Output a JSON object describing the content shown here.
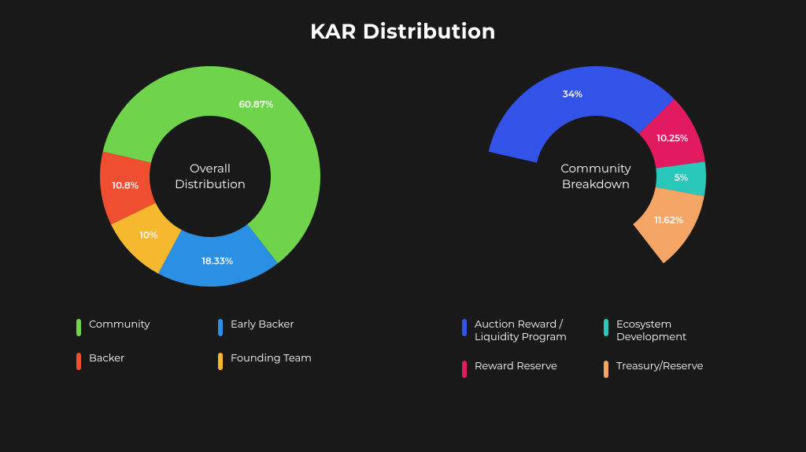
{
  "title": "KAR Distribution",
  "background_color": "#191919",
  "text_color": "#ffffff",
  "title_fontsize": 26,
  "label_fontsize": 12,
  "legend_fontsize": 13,
  "charts": [
    {
      "type": "donut",
      "center_label": "Overall\nDistribution",
      "inner_radius_ratio": 0.55,
      "start_angle_deg": -77,
      "direction": "clockwise",
      "slices": [
        {
          "name": "Community",
          "value": 60.87,
          "label": "60.87%",
          "color": "#6fd44b"
        },
        {
          "name": "Early Backer",
          "value": 18.33,
          "label": "18.33%",
          "color": "#2b8fe3"
        },
        {
          "name": "Founding Team",
          "value": 10.0,
          "label": "10%",
          "color": "#f5b82e"
        },
        {
          "name": "Backer",
          "value": 10.8,
          "label": "10.8%",
          "color": "#ef4e31"
        }
      ],
      "legend_order": [
        0,
        1,
        3,
        2
      ]
    },
    {
      "type": "donut",
      "center_label": "Community\nBreakdown",
      "inner_radius_ratio": 0.55,
      "start_angle_deg": -77,
      "direction": "clockwise",
      "slices": [
        {
          "name": "Auction Reward / Liquidity Program",
          "value": 34.0,
          "label": "34%",
          "color": "#3353e8"
        },
        {
          "name": "Reward Reserve",
          "value": 10.25,
          "label": "10.25%",
          "color": "#e21a5f"
        },
        {
          "name": "Ecosystem Development",
          "value": 5.0,
          "label": "5%",
          "color": "#2ac8bb"
        },
        {
          "name": "Treasury/Reserve",
          "value": 11.62,
          "label": "11.62%",
          "color": "#f5a667"
        }
      ],
      "legend_order": [
        0,
        2,
        1,
        3
      ],
      "scale_to_360": false
    }
  ]
}
